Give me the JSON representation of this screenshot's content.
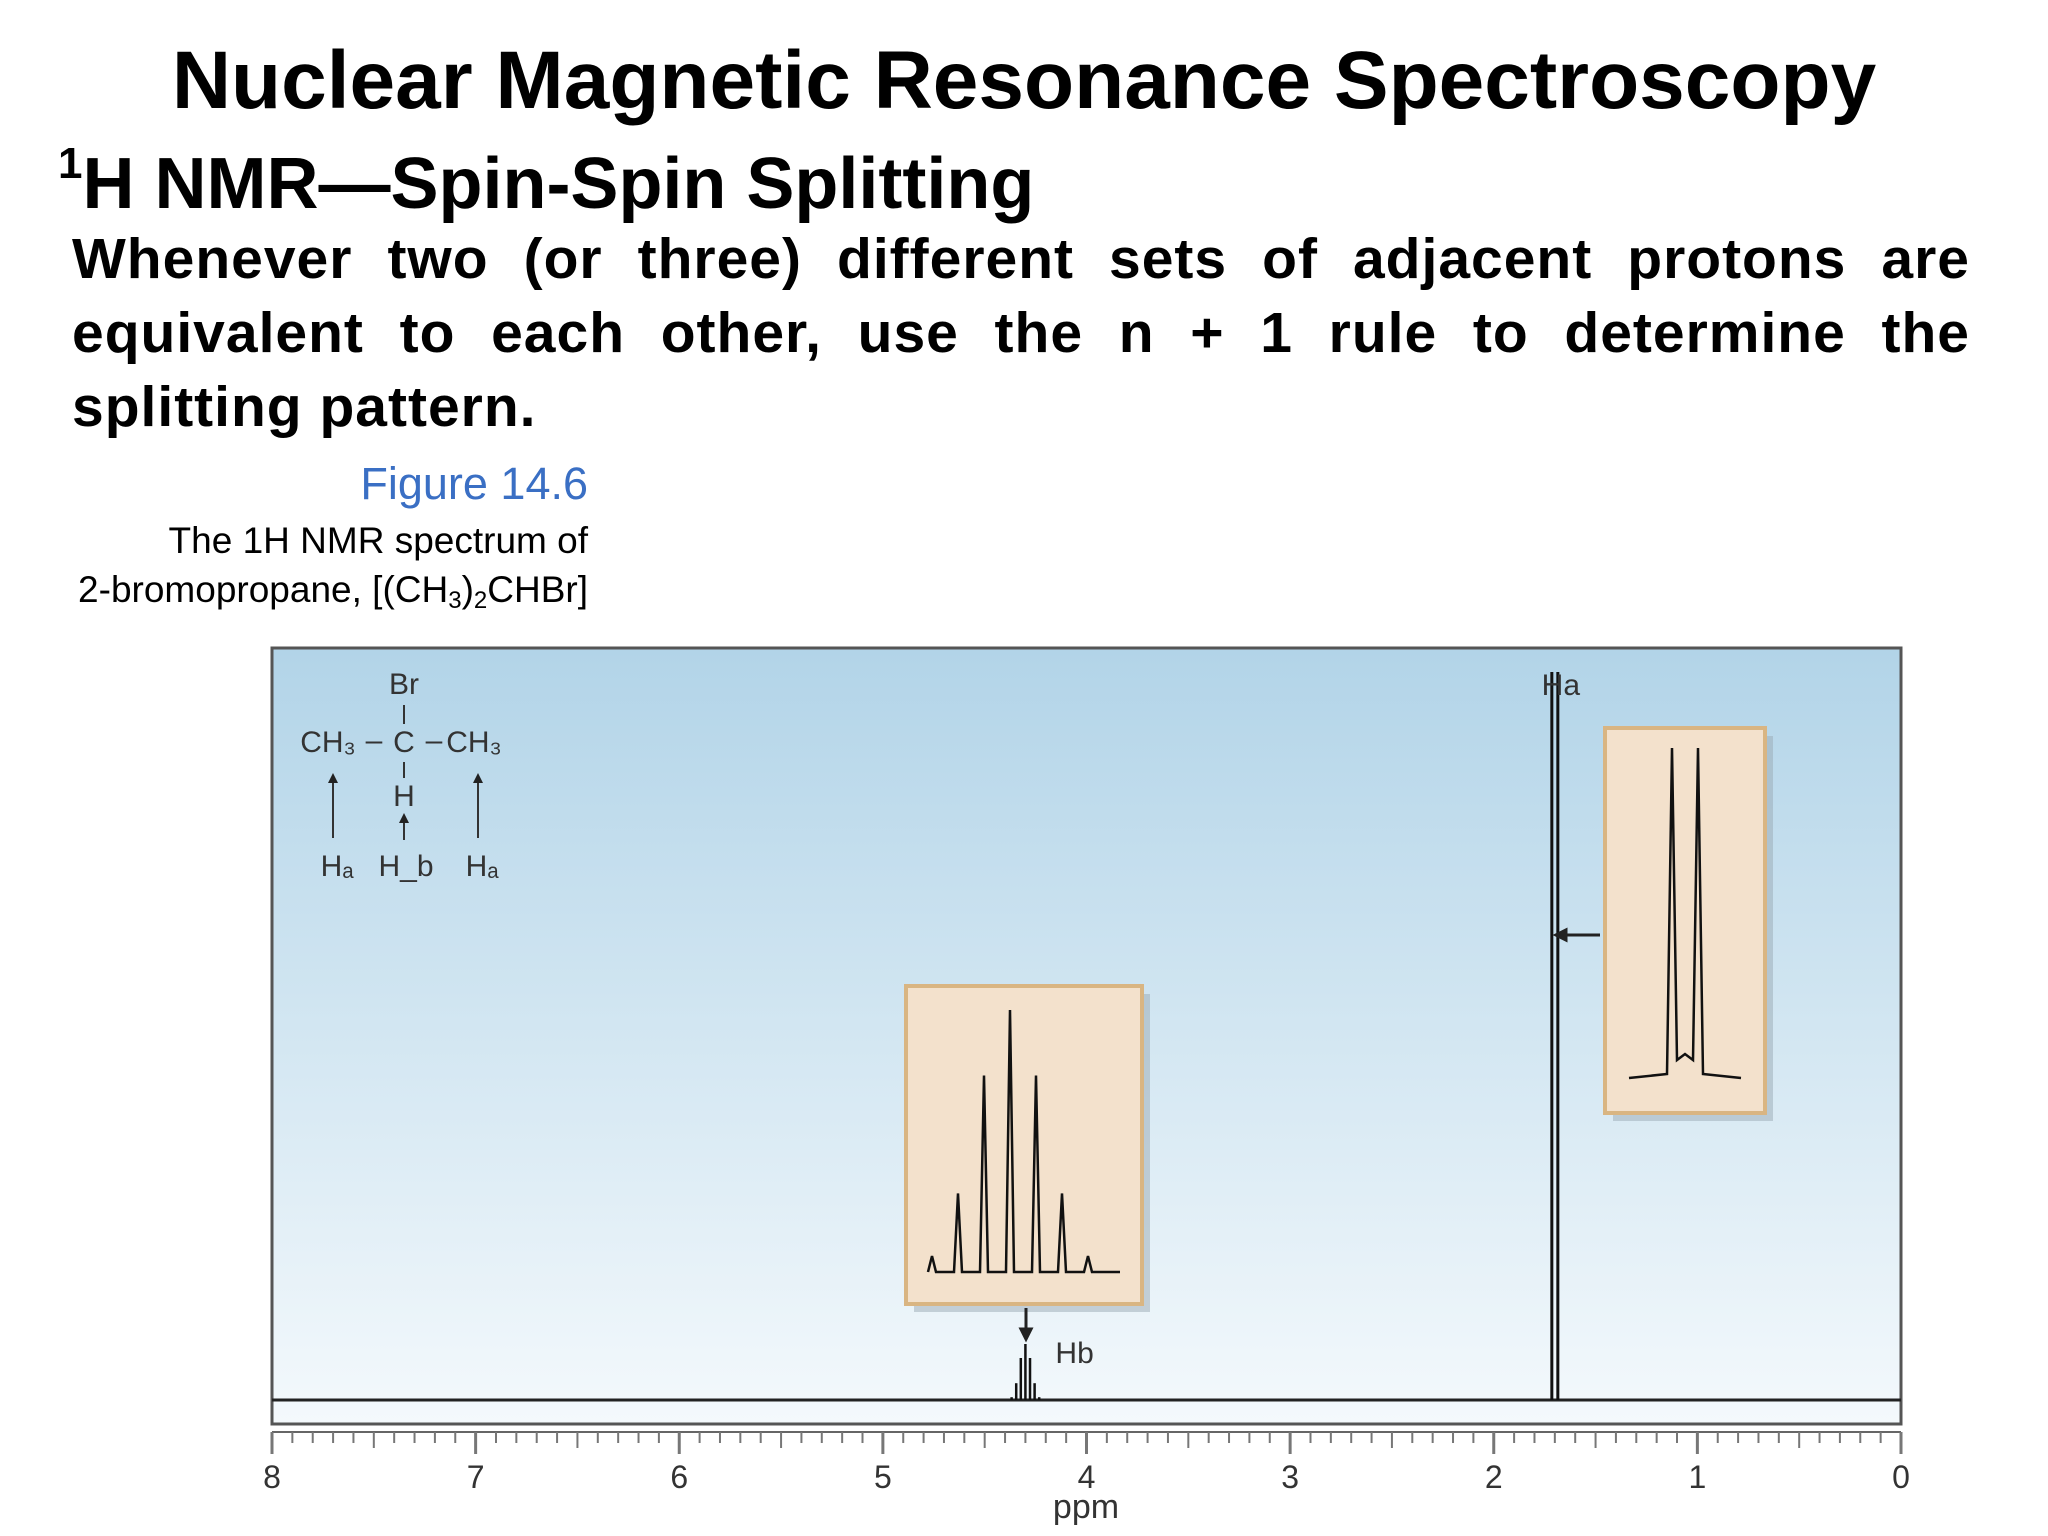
{
  "slide": {
    "title": "Nuclear Magnetic Resonance Spectroscopy",
    "subtitle_sup": "1",
    "subtitle": "H NMR—Spin-Spin Splitting",
    "body": "Whenever two (or three) different sets of adjacent protons are equivalent to each other, use the n + 1 rule to determine the splitting pattern."
  },
  "figure": {
    "label": "Figure 14.6",
    "caption_line1": "The 1H NMR spectrum of",
    "caption_line2_pre": "2-bromopropane, [(CH",
    "caption_sub1": "3",
    "caption_mid": ")",
    "caption_sub2": "2",
    "caption_post": "CHBr]"
  },
  "structure": {
    "br": "Br",
    "left_group": "CH₃",
    "bond": "–",
    "center": "C",
    "right_group": "CH₃",
    "h": "H",
    "label_a": "Hₐ",
    "label_b": "H_b"
  },
  "chart_data": {
    "type": "line",
    "xlabel": "ppm",
    "xlim": [
      8,
      0
    ],
    "x_reversed": true,
    "xticks": [
      "8",
      "7",
      "6",
      "5",
      "4",
      "3",
      "2",
      "1",
      "0"
    ],
    "peaks": [
      {
        "name": "H_b",
        "label": "Hb",
        "shift_ppm": 4.3,
        "multiplicity": "septet",
        "lines": 7,
        "relative_intensities": [
          0.05,
          0.3,
          0.75,
          1.0,
          0.75,
          0.3,
          0.05
        ]
      },
      {
        "name": "H_a",
        "label": "Ha",
        "shift_ppm": 1.7,
        "multiplicity": "doublet",
        "lines": 2,
        "relative_intensities": [
          1.0,
          1.0
        ]
      }
    ],
    "colors": {
      "plot_bg_top": "#b2d4e8",
      "plot_bg_bottom": "#f2f8fc",
      "inset_bg": "#f3e1cc",
      "inset_border": "#d9b582"
    }
  }
}
